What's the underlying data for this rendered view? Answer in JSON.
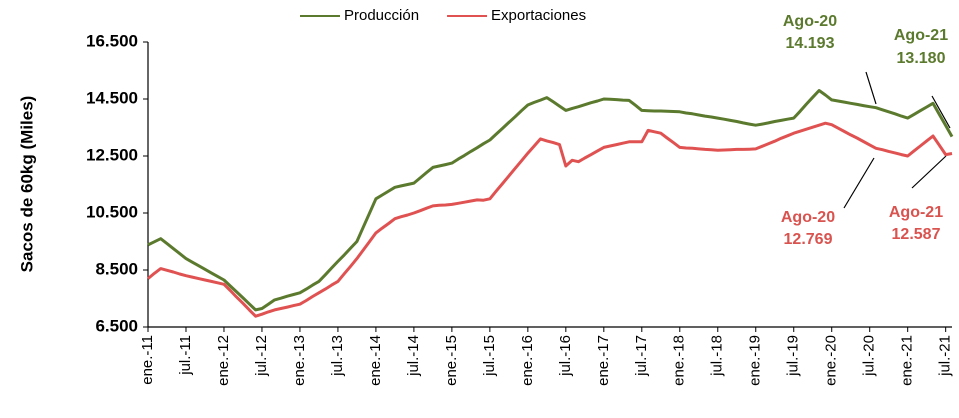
{
  "chart_data": {
    "type": "line",
    "y_label": "Sacos de 60kg (Miles)",
    "categories": [
      "ene.-11",
      null,
      null,
      null,
      null,
      null,
      "jul.-11",
      null,
      null,
      null,
      null,
      null,
      "ene.-12",
      null,
      null,
      null,
      null,
      null,
      "jul.-12",
      null,
      null,
      null,
      null,
      null,
      "ene.-13",
      null,
      null,
      null,
      null,
      null,
      "jul.-13",
      null,
      null,
      null,
      null,
      null,
      "ene.-14",
      null,
      null,
      null,
      null,
      null,
      "jul.-14",
      null,
      null,
      null,
      null,
      null,
      "ene.-15",
      null,
      null,
      null,
      null,
      null,
      "jul.-15",
      null,
      null,
      null,
      null,
      null,
      "ene.-16",
      null,
      null,
      null,
      null,
      null,
      "jul.-16",
      null,
      null,
      null,
      null,
      null,
      "ene.-17",
      null,
      null,
      null,
      null,
      null,
      "jul.-17",
      null,
      null,
      null,
      null,
      null,
      "ene.-18",
      null,
      null,
      null,
      null,
      null,
      "jul.-18",
      null,
      null,
      null,
      null,
      null,
      "ene.-19",
      null,
      null,
      null,
      null,
      null,
      "jul.-19",
      null,
      null,
      null,
      null,
      null,
      "ene.-20",
      null,
      null,
      null,
      null,
      null,
      "jul.-20",
      null,
      null,
      null,
      null,
      null,
      "ene.-21",
      null,
      null,
      null,
      null,
      null,
      "jul.-21",
      null
    ],
    "series": [
      {
        "name": "Producción",
        "color": "#5b7a2e",
        "values": [
          9380,
          9490,
          9600,
          9425,
          9250,
          9075,
          8900,
          8775,
          8650,
          8525,
          8400,
          8275,
          8150,
          7940,
          7730,
          7520,
          7310,
          7100,
          7150,
          7300,
          7450,
          7510,
          7580,
          7640,
          7700,
          7830,
          7970,
          8100,
          8330,
          8570,
          8800,
          9030,
          9270,
          9500,
          10000,
          10500,
          11000,
          11130,
          11270,
          11400,
          11450,
          11500,
          11550,
          11730,
          11920,
          12100,
          12150,
          12200,
          12250,
          12390,
          12520,
          12660,
          12790,
          12930,
          13060,
          13270,
          13470,
          13680,
          13880,
          14090,
          14290,
          14380,
          14460,
          14550,
          14400,
          14250,
          14100,
          14170,
          14230,
          14300,
          14370,
          14430,
          14500,
          14490,
          14480,
          14460,
          14450,
          14280,
          14100,
          14090,
          14080,
          14080,
          14070,
          14060,
          14050,
          14010,
          13980,
          13940,
          13900,
          13870,
          13830,
          13790,
          13750,
          13710,
          13660,
          13620,
          13580,
          13620,
          13660,
          13710,
          13750,
          13790,
          13830,
          14070,
          14320,
          14560,
          14800,
          14640,
          14470,
          14430,
          14390,
          14350,
          14310,
          14270,
          14230,
          14193,
          14120,
          14050,
          13980,
          13900,
          13830,
          13960,
          14090,
          14220,
          14350,
          13960,
          13570,
          13180
        ]
      },
      {
        "name": "Exportaciones",
        "color": "#e05252",
        "values": [
          8200,
          8380,
          8550,
          8490,
          8430,
          8360,
          8300,
          8250,
          8200,
          8150,
          8100,
          8050,
          8000,
          7780,
          7550,
          7330,
          7100,
          6880,
          6950,
          7030,
          7100,
          7150,
          7200,
          7250,
          7300,
          7430,
          7570,
          7700,
          7830,
          7970,
          8100,
          8370,
          8630,
          8900,
          9200,
          9500,
          9800,
          9970,
          10130,
          10300,
          10370,
          10430,
          10500,
          10580,
          10670,
          10750,
          10770,
          10780,
          10800,
          10840,
          10880,
          10920,
          10960,
          10950,
          11000,
          11270,
          11530,
          11800,
          12070,
          12330,
          12600,
          12850,
          13100,
          13030,
          12970,
          12900,
          12150,
          12350,
          12300,
          12430,
          12550,
          12680,
          12800,
          12850,
          12900,
          12950,
          13000,
          13000,
          13000,
          13400,
          13350,
          13300,
          13130,
          12970,
          12800,
          12780,
          12770,
          12750,
          12730,
          12720,
          12700,
          12710,
          12720,
          12730,
          12730,
          12740,
          12750,
          12840,
          12930,
          13020,
          13120,
          13210,
          13300,
          13370,
          13440,
          13510,
          13580,
          13650,
          13600,
          13480,
          13360,
          13240,
          13130,
          13010,
          12890,
          12769,
          12720,
          12660,
          12610,
          12550,
          12500,
          12680,
          12850,
          13030,
          13200,
          12880,
          12550,
          12587
        ]
      }
    ],
    "ylim": [
      6500,
      16500
    ],
    "yticks": [
      {
        "value": 6500,
        "label": "6.500"
      },
      {
        "value": 8500,
        "label": "8.500"
      },
      {
        "value": 10500,
        "label": "10.500"
      },
      {
        "value": 12500,
        "label": "12.500"
      },
      {
        "value": 14500,
        "label": "14.500"
      },
      {
        "value": 16500,
        "label": "16.500"
      }
    ],
    "annotations": [
      {
        "lines": [
          "Ago-20",
          "14.193"
        ],
        "color": "#5b7a2e"
      },
      {
        "lines": [
          "Ago-21",
          "13.180"
        ],
        "color": "#5b7a2e"
      },
      {
        "lines": [
          "Ago-20",
          "12.769"
        ],
        "color": "#d9534f"
      },
      {
        "lines": [
          "Ago-21",
          "12.587"
        ],
        "color": "#d9534f"
      }
    ],
    "legend": "top"
  }
}
